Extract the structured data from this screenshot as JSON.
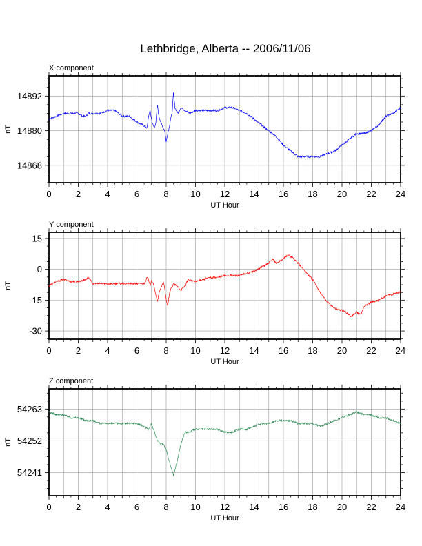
{
  "title": "Lethbridge, Alberta -- 2006/11/06",
  "chart_data": [
    {
      "type": "line",
      "panel_title": "X component",
      "xlabel": "UT Hour",
      "ylabel": "nT",
      "xlim": [
        0,
        24
      ],
      "ylim": [
        14862,
        14899
      ],
      "xticks": [
        0,
        2,
        4,
        6,
        8,
        10,
        12,
        14,
        16,
        18,
        20,
        22,
        24
      ],
      "yticks": [
        14868,
        14880,
        14892
      ],
      "grid": true,
      "color": "#0000ff",
      "series": [
        {
          "x": [
            0,
            0.5,
            1,
            1.5,
            2,
            2.3,
            2.5,
            2.7,
            3,
            3.5,
            4,
            4.5,
            5,
            5.5,
            6,
            6.4,
            6.7,
            6.8,
            6.9,
            7.0,
            7.1,
            7.2,
            7.3,
            7.4,
            7.5,
            7.7,
            7.9,
            8.0,
            8.1,
            8.2,
            8.3,
            8.4,
            8.5,
            8.6,
            8.8,
            9.0,
            9.3,
            9.6,
            10,
            10.5,
            11,
            11.5,
            12,
            12.5,
            13,
            13.5,
            14,
            14.5,
            15,
            15.5,
            16,
            16.5,
            17,
            17.5,
            18,
            18.5,
            19,
            19.5,
            20,
            20.5,
            21,
            21.5,
            22,
            22.5,
            23,
            23.5,
            24
          ],
          "values": [
            14884,
            14885,
            14886,
            14886,
            14886,
            14885,
            14885,
            14886,
            14886,
            14886,
            14887,
            14887,
            14885,
            14885,
            14883,
            14882,
            14881,
            14885,
            14887,
            14884,
            14882,
            14881,
            14883,
            14889,
            14885,
            14882,
            14880,
            14876,
            14879,
            14881,
            14884,
            14886,
            14893,
            14888,
            14886,
            14888,
            14887,
            14886,
            14887,
            14887,
            14887,
            14887,
            14888,
            14888,
            14887,
            14886,
            14884,
            14882,
            14880,
            14878,
            14875,
            14873,
            14871,
            14871,
            14871,
            14871,
            14872,
            14873,
            14875,
            14877,
            14879,
            14879,
            14880,
            14882,
            14885,
            14886,
            14888
          ]
        }
      ]
    },
    {
      "type": "line",
      "panel_title": "Y component",
      "xlabel": "UT Hour",
      "ylabel": "nT",
      "xlim": [
        0,
        24
      ],
      "ylim": [
        -34,
        18
      ],
      "xticks": [
        0,
        2,
        4,
        6,
        8,
        10,
        12,
        14,
        16,
        18,
        20,
        22,
        24
      ],
      "yticks": [
        -30,
        -15,
        0,
        15
      ],
      "grid": true,
      "color": "#ff0000",
      "series": [
        {
          "x": [
            0,
            0.5,
            1,
            1.5,
            2,
            2.5,
            2.7,
            3,
            3.5,
            4,
            4.5,
            5,
            5.5,
            6,
            6.5,
            6.7,
            6.8,
            6.9,
            7.0,
            7.2,
            7.4,
            7.5,
            7.7,
            7.8,
            7.9,
            8.0,
            8.1,
            8.2,
            8.3,
            8.5,
            8.7,
            9.0,
            9.3,
            9.5,
            10,
            10.5,
            11,
            11.5,
            12,
            12.5,
            13,
            13.5,
            14,
            14.5,
            15,
            15.3,
            15.5,
            16,
            16.3,
            16.6,
            17,
            17.5,
            18,
            18.5,
            19,
            19.5,
            20,
            20.3,
            20.6,
            21,
            21.3,
            21.5,
            22,
            22.5,
            23,
            23.5,
            24
          ],
          "values": [
            -8,
            -6,
            -5,
            -6,
            -6,
            -5,
            -4,
            -7,
            -7,
            -7,
            -7,
            -7,
            -7,
            -7,
            -7,
            -4,
            -5,
            -8,
            -5,
            -9,
            -16,
            -12,
            -8,
            -6,
            -9,
            -15,
            -18,
            -13,
            -10,
            -7,
            -8,
            -10,
            -8,
            -5,
            -6,
            -5,
            -4,
            -4,
            -3,
            -3,
            -3,
            -2,
            -1,
            1,
            3,
            5,
            3,
            5,
            7,
            6,
            3,
            -1,
            -5,
            -11,
            -16,
            -19,
            -20,
            -21,
            -23,
            -21,
            -22,
            -18,
            -16,
            -15,
            -13,
            -12,
            -11
          ]
        }
      ]
    },
    {
      "type": "line",
      "panel_title": "Z component",
      "xlabel": "UT Hour",
      "ylabel": "nT",
      "xlim": [
        0,
        24
      ],
      "ylim": [
        54233,
        54270
      ],
      "xticks": [
        0,
        2,
        4,
        6,
        8,
        10,
        12,
        14,
        16,
        18,
        20,
        22,
        24
      ],
      "yticks": [
        54241,
        54252,
        54263
      ],
      "grid": true,
      "color": "#2e8b57",
      "series": [
        {
          "x": [
            0,
            0.5,
            1,
            1.5,
            2,
            2.5,
            3,
            3.5,
            4,
            4.5,
            5,
            5.5,
            6,
            6.5,
            6.8,
            7.0,
            7.2,
            7.4,
            7.6,
            7.8,
            8.0,
            8.2,
            8.4,
            8.5,
            8.6,
            8.8,
            9.0,
            9.3,
            9.6,
            10,
            10.5,
            11,
            11.5,
            12,
            12.5,
            13,
            13.5,
            14,
            14.5,
            15,
            15.5,
            16,
            16.5,
            17,
            17.5,
            18,
            18.5,
            19,
            19.5,
            20,
            20.5,
            21,
            21.5,
            22,
            22.5,
            23,
            23.5,
            24
          ],
          "values": [
            54262,
            54261,
            54261,
            54260,
            54260,
            54259,
            54259,
            54258,
            54258,
            54258,
            54258,
            54258,
            54258,
            54257,
            54256,
            54258,
            54255,
            54252,
            54251,
            54251,
            54249,
            54245,
            54242,
            54240,
            54242,
            54246,
            54251,
            54255,
            54255,
            54256,
            54256,
            54256,
            54256,
            54255,
            54255,
            54256,
            54256,
            54257,
            54258,
            54258,
            54259,
            54259,
            54259,
            54258,
            54258,
            54258,
            54257,
            54258,
            54259,
            54260,
            54261,
            54262,
            54261,
            54261,
            54260,
            54260,
            54259,
            54258
          ]
        }
      ]
    }
  ]
}
